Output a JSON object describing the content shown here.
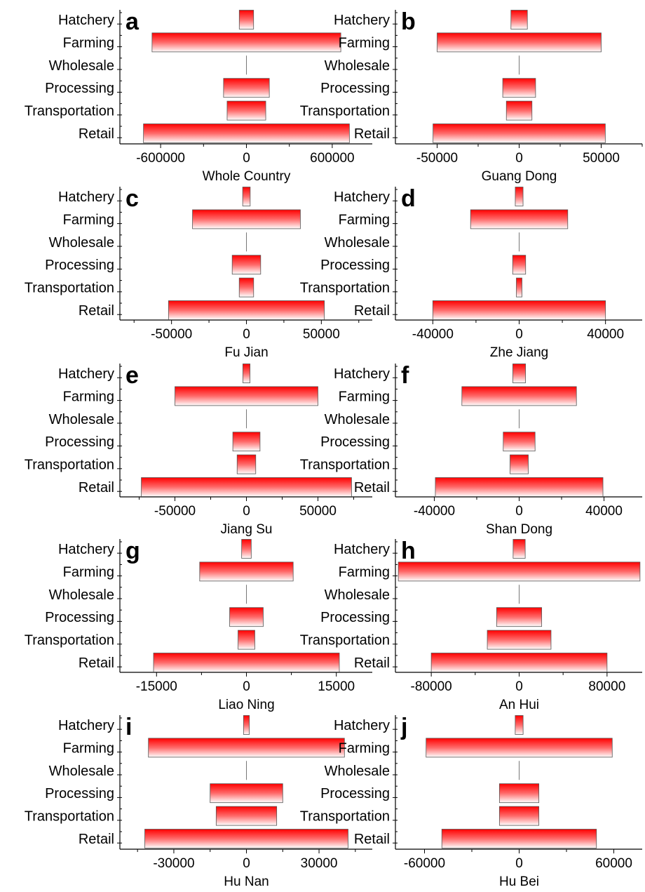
{
  "chart_data": [
    {
      "type": "bar",
      "orientation": "horizontal",
      "panel": "a",
      "xlabel": "Whole Country",
      "categories": [
        "Hatchery",
        "Farming",
        "Wholesale",
        "Processing",
        "Transportation",
        "Retail"
      ],
      "values": [
        50000,
        660000,
        0,
        160000,
        135000,
        720000
      ],
      "xlim": [
        -880000,
        880000
      ],
      "xticks": [
        -600000,
        0,
        600000
      ],
      "xtick_labels": [
        "-600000",
        "0",
        "600000"
      ]
    },
    {
      "type": "bar",
      "orientation": "horizontal",
      "panel": "b",
      "xlabel": "Guang Dong",
      "categories": [
        "Hatchery",
        "Farming",
        "Wholesale",
        "Processing",
        "Transportation",
        "Retail"
      ],
      "values": [
        5000,
        50000,
        0,
        10000,
        7800,
        52500
      ],
      "xlim": [
        -75000,
        75000
      ],
      "xticks": [
        -50000,
        0,
        50000
      ],
      "xtick_labels": [
        "-50000",
        "0",
        "50000"
      ]
    },
    {
      "type": "bar",
      "orientation": "horizontal",
      "panel": "c",
      "xlabel": "Fu Jian",
      "categories": [
        "Hatchery",
        "Farming",
        "Wholesale",
        "Processing",
        "Transportation",
        "Retail"
      ],
      "values": [
        2500,
        36000,
        0,
        9500,
        4800,
        52000
      ],
      "xlim": [
        -84000,
        84000
      ],
      "xticks": [
        -50000,
        0,
        50000
      ],
      "xtick_labels": [
        "-50000",
        "0",
        "50000"
      ]
    },
    {
      "type": "bar",
      "orientation": "horizontal",
      "panel": "d",
      "xlabel": "Zhe Jiang",
      "categories": [
        "Hatchery",
        "Farming",
        "Wholesale",
        "Processing",
        "Transportation",
        "Retail"
      ],
      "values": [
        1800,
        22500,
        0,
        3000,
        1300,
        40000
      ],
      "xlim": [
        -57000,
        57000
      ],
      "xticks": [
        -40000,
        0,
        40000
      ],
      "xtick_labels": [
        "-40000",
        "0",
        "40000"
      ]
    },
    {
      "type": "bar",
      "orientation": "horizontal",
      "panel": "e",
      "xlabel": "Jiang Su",
      "categories": [
        "Hatchery",
        "Farming",
        "Wholesale",
        "Processing",
        "Transportation",
        "Retail"
      ],
      "values": [
        2500,
        50000,
        0,
        9500,
        6500,
        73500
      ],
      "xlim": [
        -88000,
        88000
      ],
      "xticks": [
        -50000,
        0,
        50000
      ],
      "xtick_labels": [
        "-50000",
        "0",
        "50000"
      ]
    },
    {
      "type": "bar",
      "orientation": "horizontal",
      "panel": "f",
      "xlabel": "Shan Dong",
      "categories": [
        "Hatchery",
        "Farming",
        "Wholesale",
        "Processing",
        "Transportation",
        "Retail"
      ],
      "values": [
        3000,
        27000,
        0,
        7500,
        4300,
        39500
      ],
      "xlim": [
        -58000,
        58000
      ],
      "xticks": [
        -40000,
        0,
        40000
      ],
      "xtick_labels": [
        "-40000",
        "0",
        "40000"
      ]
    },
    {
      "type": "bar",
      "orientation": "horizontal",
      "panel": "g",
      "xlabel": "Liao Ning",
      "categories": [
        "Hatchery",
        "Farming",
        "Wholesale",
        "Processing",
        "Transportation",
        "Retail"
      ],
      "values": [
        800,
        7800,
        0,
        2800,
        1400,
        15500
      ],
      "xlim": [
        -21000,
        21000
      ],
      "xticks": [
        -15000,
        0,
        15000
      ],
      "xtick_labels": [
        "-15000",
        "0",
        "15000"
      ]
    },
    {
      "type": "bar",
      "orientation": "horizontal",
      "panel": "h",
      "xlabel": "An Hui",
      "categories": [
        "Hatchery",
        "Farming",
        "Wholesale",
        "Processing",
        "Transportation",
        "Retail"
      ],
      "values": [
        5500,
        110000,
        0,
        20500,
        29000,
        80000
      ],
      "xlim": [
        -112000,
        112000
      ],
      "xticks": [
        -80000,
        0,
        80000
      ],
      "xtick_labels": [
        "-80000",
        "0",
        "80000"
      ]
    },
    {
      "type": "bar",
      "orientation": "horizontal",
      "panel": "i",
      "xlabel": "Hu Nan",
      "categories": [
        "Hatchery",
        "Farming",
        "Wholesale",
        "Processing",
        "Transportation",
        "Retail"
      ],
      "values": [
        1200,
        40500,
        0,
        15000,
        12500,
        42000
      ],
      "xlim": [
        -52000,
        52000
      ],
      "xticks": [
        -30000,
        0,
        30000
      ],
      "xtick_labels": [
        "-30000",
        "0",
        "30000"
      ]
    },
    {
      "type": "bar",
      "orientation": "horizontal",
      "panel": "j",
      "xlabel": "Hu Bei",
      "categories": [
        "Hatchery",
        "Farming",
        "Wholesale",
        "Processing",
        "Transportation",
        "Retail"
      ],
      "values": [
        2500,
        59000,
        0,
        12500,
        12500,
        49000
      ],
      "xlim": [
        -78000,
        78000
      ],
      "xticks": [
        -60000,
        0,
        60000
      ],
      "xtick_labels": [
        "-60000",
        "0",
        "60000"
      ]
    }
  ]
}
